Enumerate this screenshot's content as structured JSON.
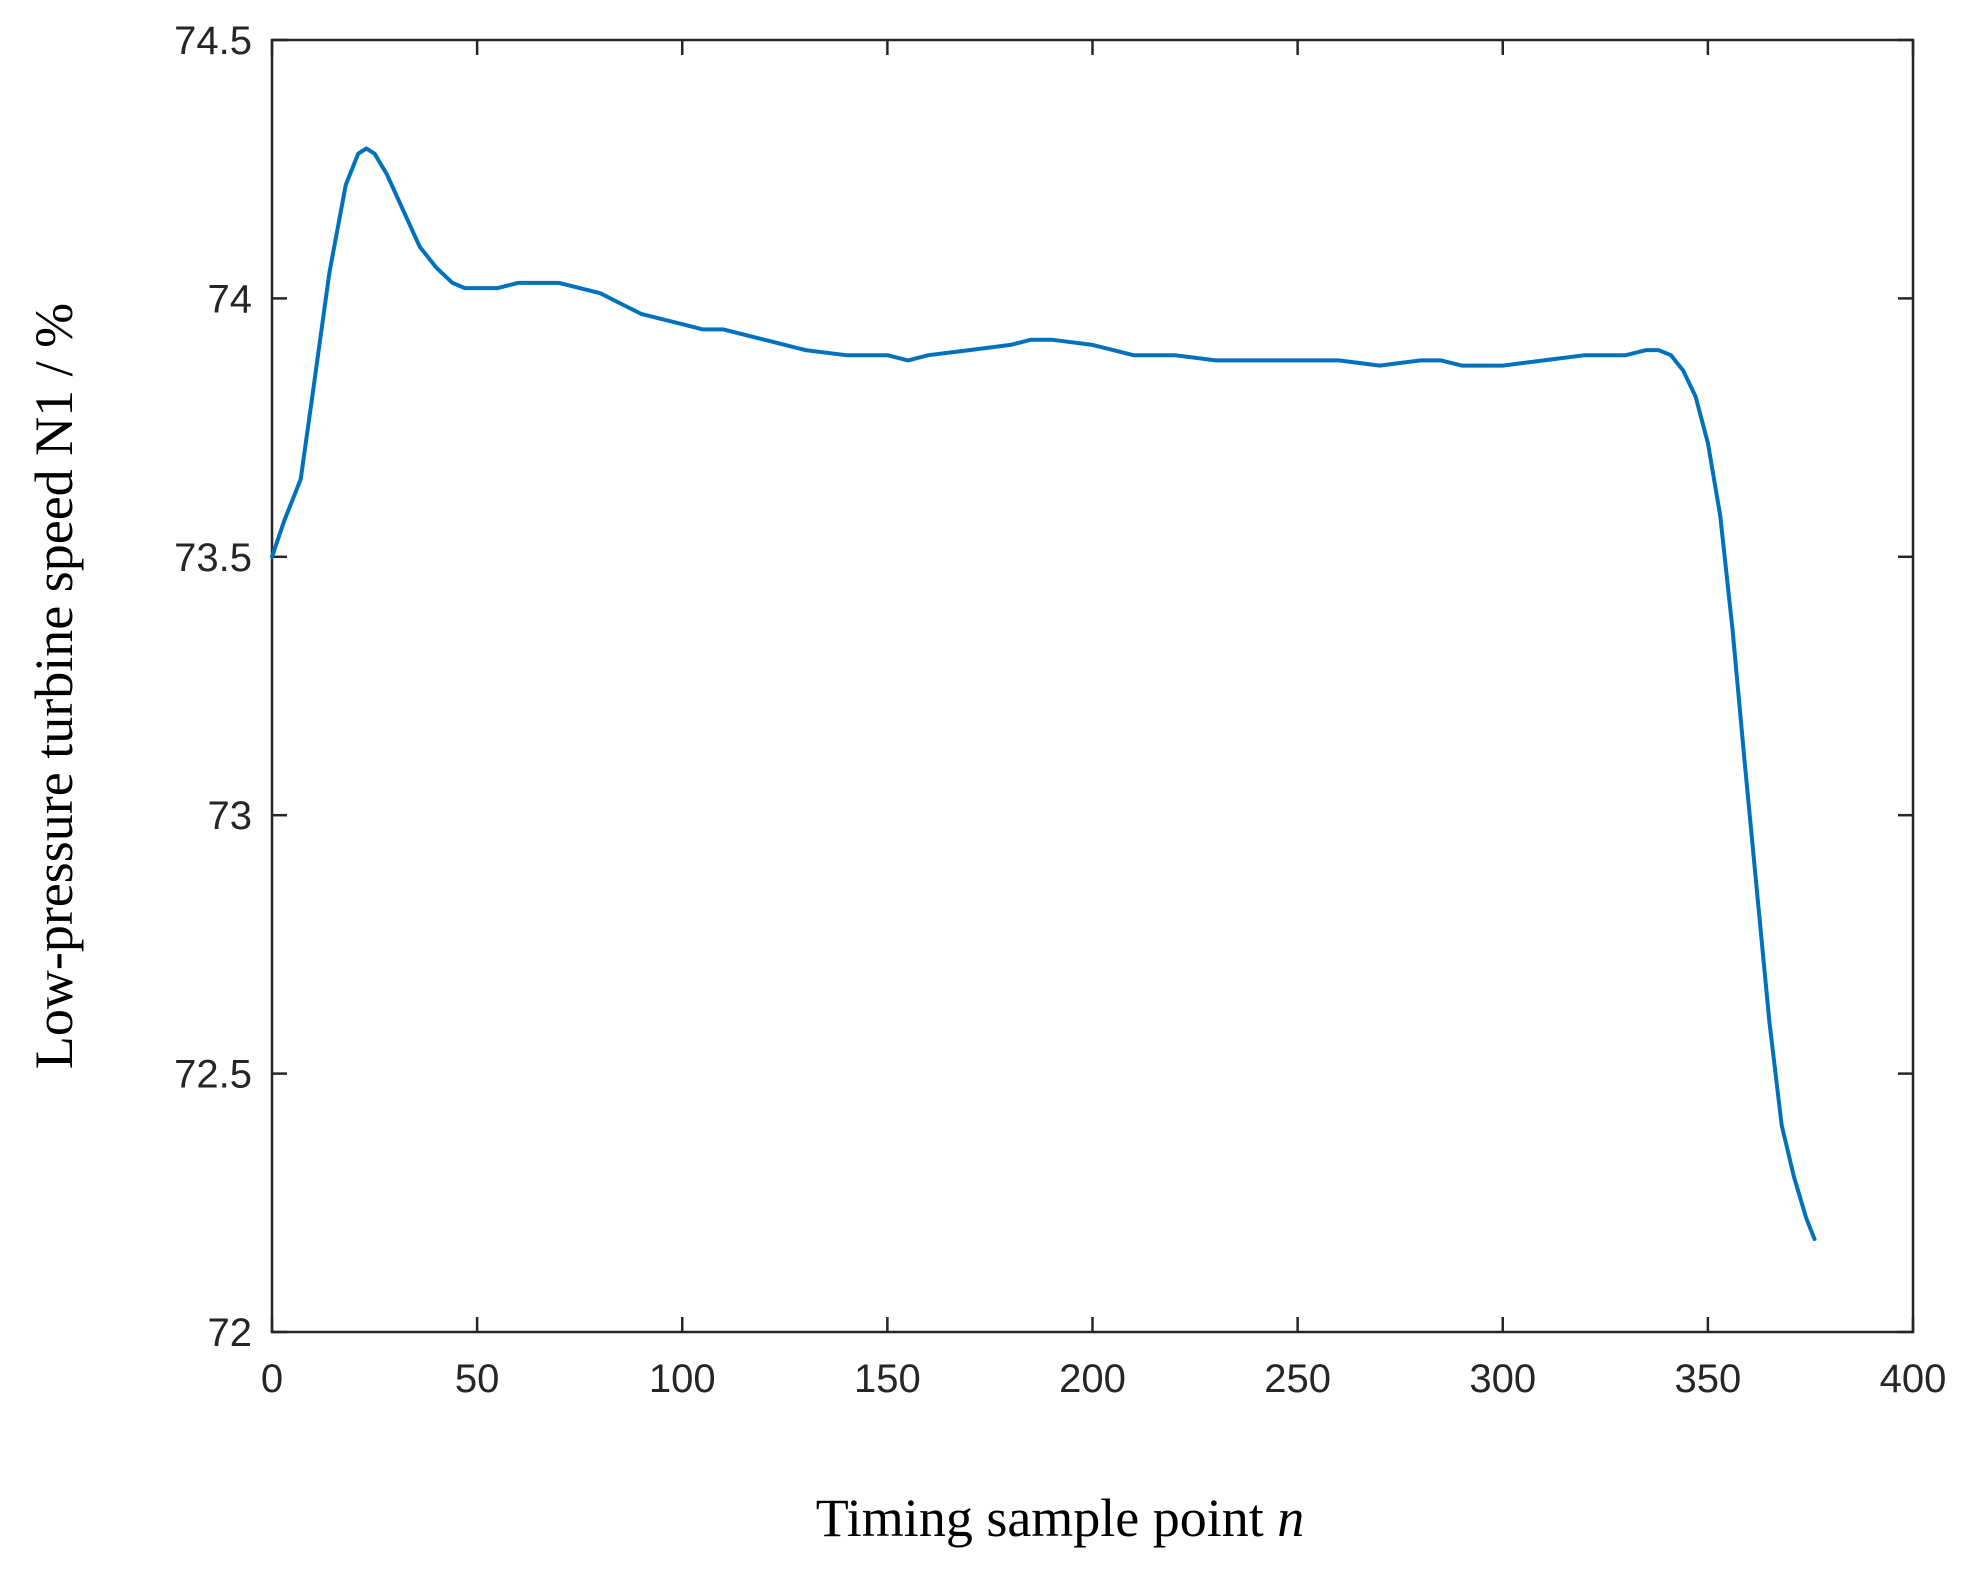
{
  "chart_data": {
    "type": "line",
    "xlabel": "Timing sample point",
    "xlabel_var": "n",
    "ylabel": "Low-pressure turbine speed N1 / %",
    "xlim": [
      0,
      400
    ],
    "ylim": [
      72,
      74.5
    ],
    "xticks": [
      0,
      50,
      100,
      150,
      200,
      250,
      300,
      350,
      400
    ],
    "xtick_labels": [
      "0",
      "50",
      "100",
      "150",
      "200",
      "250",
      "300",
      "350",
      "400"
    ],
    "yticks": [
      72,
      72.5,
      73,
      73.5,
      74,
      74.5
    ],
    "ytick_labels": [
      "72",
      "72.5",
      "73",
      "73.5",
      "74",
      "74.5"
    ],
    "grid": false,
    "legend": "none",
    "line_color": "#0072BD",
    "series": [
      {
        "x": [
          0,
          3,
          7,
          10,
          14,
          18,
          21,
          23,
          25,
          28,
          32,
          36,
          40,
          44,
          47,
          50,
          55,
          60,
          65,
          70,
          75,
          80,
          85,
          90,
          95,
          100,
          105,
          110,
          115,
          120,
          130,
          140,
          150,
          155,
          160,
          170,
          180,
          185,
          190,
          200,
          210,
          220,
          230,
          240,
          250,
          260,
          270,
          280,
          285,
          290,
          300,
          310,
          320,
          330,
          335,
          338,
          341,
          344,
          347,
          350,
          353,
          356,
          359,
          362,
          365,
          368,
          371,
          374,
          376
        ],
        "y": [
          73.5,
          73.57,
          73.65,
          73.82,
          74.05,
          74.22,
          74.28,
          74.29,
          74.28,
          74.24,
          74.17,
          74.1,
          74.06,
          74.03,
          74.02,
          74.02,
          74.02,
          74.03,
          74.03,
          74.03,
          74.02,
          74.01,
          73.99,
          73.97,
          73.96,
          73.95,
          73.94,
          73.94,
          73.93,
          73.92,
          73.9,
          73.89,
          73.89,
          73.88,
          73.89,
          73.9,
          73.91,
          73.92,
          73.92,
          73.91,
          73.89,
          73.89,
          73.88,
          73.88,
          73.88,
          73.88,
          73.87,
          73.88,
          73.88,
          73.87,
          73.87,
          73.88,
          73.89,
          73.89,
          73.9,
          73.9,
          73.89,
          73.86,
          73.81,
          73.72,
          73.58,
          73.36,
          73.1,
          72.85,
          72.6,
          72.4,
          72.3,
          72.22,
          72.18
        ]
      }
    ]
  }
}
